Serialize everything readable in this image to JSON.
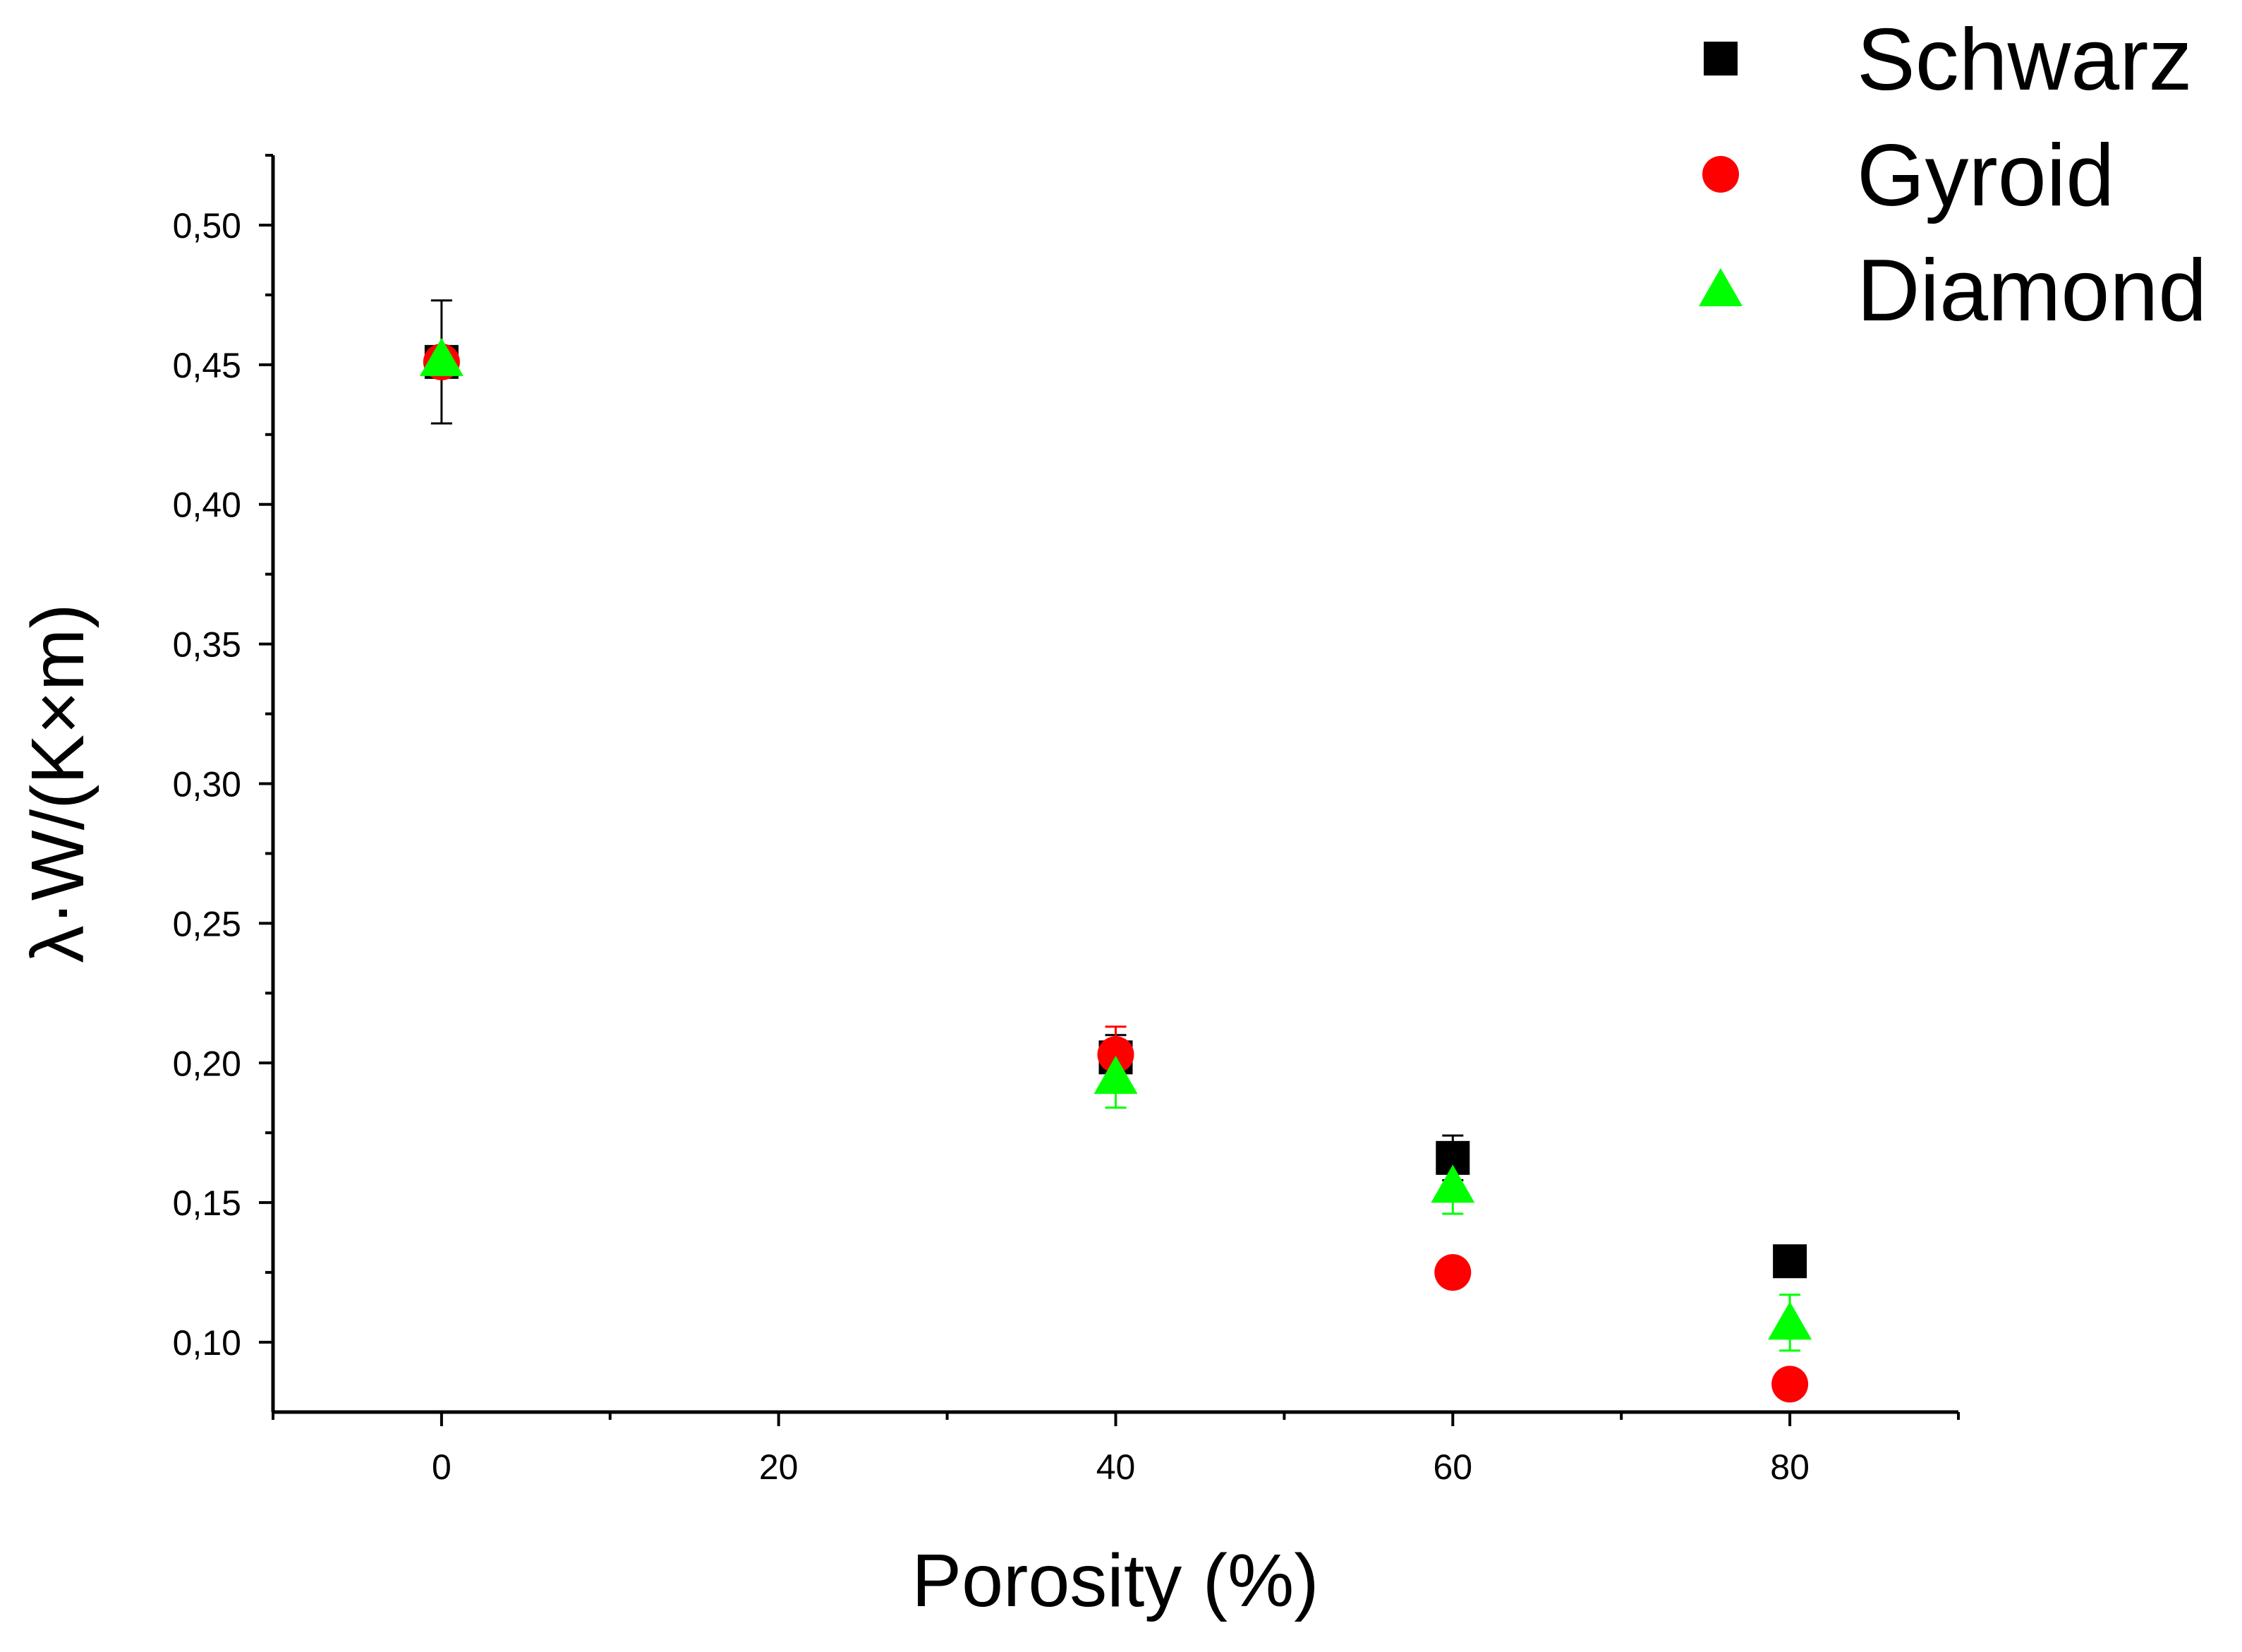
{
  "chart_data": {
    "type": "scatter",
    "xlabel": "Porosity (%)",
    "ylabel": "λ·W/(K×m)",
    "xlim": [
      -10,
      90
    ],
    "ylim": [
      0.075,
      0.525
    ],
    "x_ticks": [
      0,
      20,
      40,
      60,
      80
    ],
    "x_tick_labels": [
      "0",
      "20",
      "40",
      "60",
      "80"
    ],
    "y_ticks": [
      0.1,
      0.15,
      0.2,
      0.25,
      0.3,
      0.35,
      0.4,
      0.45,
      0.5
    ],
    "y_tick_labels": [
      "0,10",
      "0,15",
      "0,20",
      "0,25",
      "0,30",
      "0,35",
      "0,40",
      "0,45",
      "0,50"
    ],
    "grid": false,
    "legend_position": "top-right",
    "series": [
      {
        "name": "Schwarz",
        "marker": "square",
        "color": "#000000",
        "points": [
          {
            "x": 0,
            "y": 0.451,
            "err": 0.022
          },
          {
            "x": 40,
            "y": 0.202,
            "err": 0.008
          },
          {
            "x": 60,
            "y": 0.166,
            "err": 0.008
          },
          {
            "x": 80,
            "y": 0.129,
            "err": 0.003
          }
        ]
      },
      {
        "name": "Gyroid",
        "marker": "circle",
        "color": "#ff0000",
        "points": [
          {
            "x": 0,
            "y": 0.451,
            "err": 0.003
          },
          {
            "x": 40,
            "y": 0.203,
            "err": 0.01
          },
          {
            "x": 60,
            "y": 0.125,
            "err": 0.003
          },
          {
            "x": 80,
            "y": 0.085,
            "err": 0.002
          }
        ]
      },
      {
        "name": "Diamond",
        "marker": "triangle",
        "color": "#00ff00",
        "points": [
          {
            "x": 0,
            "y": 0.452,
            "err": 0.004
          },
          {
            "x": 40,
            "y": 0.195,
            "err": 0.011
          },
          {
            "x": 60,
            "y": 0.156,
            "err": 0.01
          },
          {
            "x": 80,
            "y": 0.107,
            "err": 0.01
          }
        ]
      }
    ]
  }
}
